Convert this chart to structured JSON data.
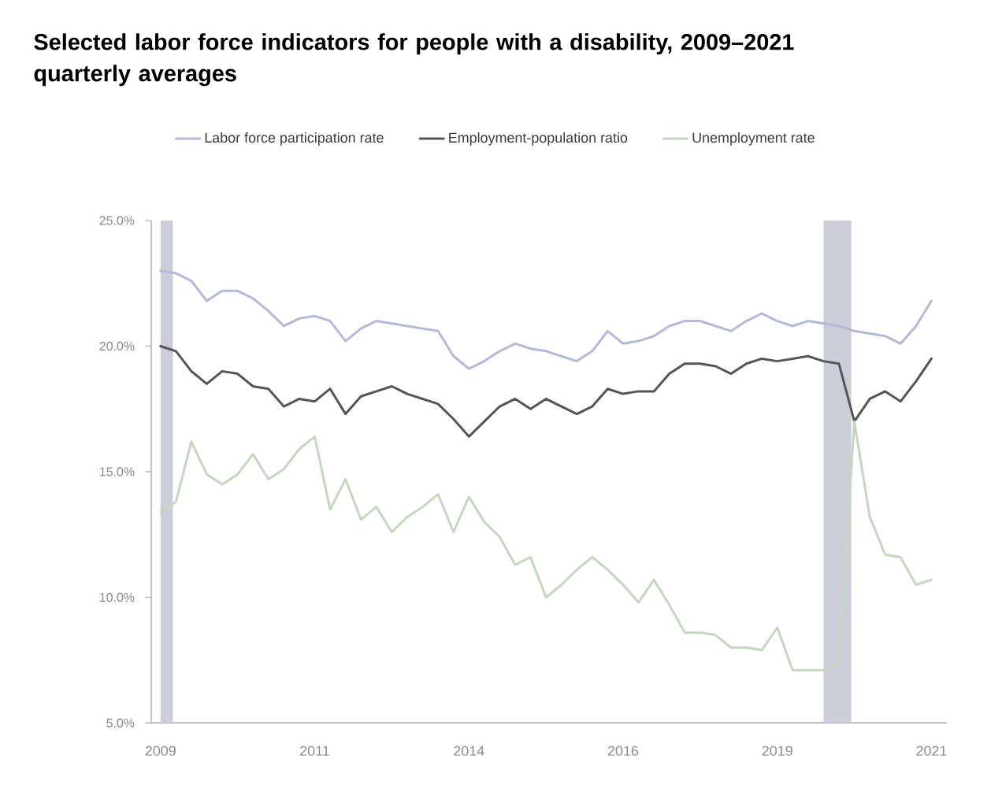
{
  "chart_data": {
    "type": "line",
    "title": "Selected labor force indicators for people with a disability, 2009–2021 quarterly averages",
    "x": [
      2009,
      2009.25,
      2009.5,
      2009.75,
      2010,
      2010.25,
      2010.5,
      2010.75,
      2011,
      2011.25,
      2011.5,
      2011.75,
      2012,
      2012.25,
      2012.5,
      2012.75,
      2013,
      2013.25,
      2013.5,
      2013.75,
      2014,
      2014.25,
      2014.5,
      2014.75,
      2015,
      2015.25,
      2015.5,
      2015.75,
      2016,
      2016.25,
      2016.5,
      2016.75,
      2017,
      2017.25,
      2017.5,
      2017.75,
      2018,
      2018.25,
      2018.5,
      2018.75,
      2019,
      2019.25,
      2019.5,
      2019.75,
      2020,
      2020.25,
      2020.5,
      2020.75,
      2021,
      2021.25,
      2021.5
    ],
    "xlim": [
      2008.85,
      2021.75
    ],
    "xticks": [
      2009,
      {
        "value": 2011.5,
        "label": "2011"
      },
      2014,
      {
        "value": 2016.5,
        "label": "2016"
      },
      2019,
      {
        "value": 2021.5,
        "label": "2021"
      }
    ],
    "ylim": [
      5,
      25
    ],
    "yticks": [
      {
        "value": 5,
        "label": "5.0%"
      },
      {
        "value": 10,
        "label": "10.0%"
      },
      {
        "value": 15,
        "label": "15.0%"
      },
      {
        "value": 20,
        "label": "20.0%"
      },
      {
        "value": 25,
        "label": "25.0%"
      }
    ],
    "legend": "top",
    "bands": [
      {
        "axis": "x",
        "from": 2009,
        "to": 2009.2,
        "color": "#cdcdda"
      },
      {
        "axis": "x",
        "from": 2019.75,
        "to": 2020.2,
        "color": "#cdcdda"
      }
    ],
    "series": [
      {
        "name": "Labor force participation rate",
        "color": "#b5b9d8",
        "values": [
          23.0,
          22.9,
          22.6,
          21.8,
          22.2,
          22.2,
          21.9,
          21.4,
          20.8,
          21.1,
          21.2,
          21.0,
          20.2,
          20.7,
          21.0,
          20.9,
          20.8,
          20.7,
          20.6,
          19.6,
          19.1,
          19.4,
          19.8,
          20.1,
          19.9,
          19.8,
          19.6,
          19.4,
          19.8,
          20.6,
          20.1,
          20.2,
          20.4,
          20.8,
          21.0,
          21.0,
          20.8,
          20.6,
          21.0,
          21.3,
          21.0,
          20.8,
          21.0,
          20.9,
          20.8,
          20.6,
          20.5,
          20.4,
          20.1,
          20.8,
          21.8
        ]
      },
      {
        "name": "Employment-population ratio",
        "color": "#555555",
        "values": [
          20.0,
          19.8,
          19.0,
          18.5,
          19.0,
          18.9,
          18.4,
          18.3,
          17.6,
          17.9,
          17.8,
          18.3,
          17.3,
          18.0,
          18.2,
          18.4,
          18.1,
          17.9,
          17.7,
          17.1,
          16.4,
          17.0,
          17.6,
          17.9,
          17.5,
          17.9,
          17.6,
          17.3,
          17.6,
          18.3,
          18.1,
          18.2,
          18.2,
          18.9,
          19.3,
          19.3,
          19.2,
          18.9,
          19.3,
          19.5,
          19.4,
          19.5,
          19.6,
          19.4,
          19.3,
          17.0,
          17.9,
          18.2,
          17.8,
          18.6,
          19.5
        ]
      },
      {
        "name": "Unemployment rate",
        "color": "#c3d8bc",
        "values": [
          13.4,
          13.8,
          16.2,
          14.9,
          14.5,
          14.9,
          15.7,
          14.7,
          15.1,
          15.9,
          16.4,
          13.5,
          14.7,
          13.1,
          13.6,
          12.6,
          13.2,
          13.6,
          14.1,
          12.6,
          14.0,
          13.0,
          12.4,
          11.3,
          11.6,
          10.0,
          10.5,
          11.1,
          11.6,
          11.1,
          10.5,
          9.8,
          10.7,
          9.7,
          8.6,
          8.6,
          8.5,
          8.0,
          8.0,
          7.9,
          8.8,
          7.1,
          7.1,
          7.1,
          7.3,
          17.0,
          13.2,
          11.7,
          11.6,
          10.5,
          10.7
        ]
      }
    ]
  }
}
